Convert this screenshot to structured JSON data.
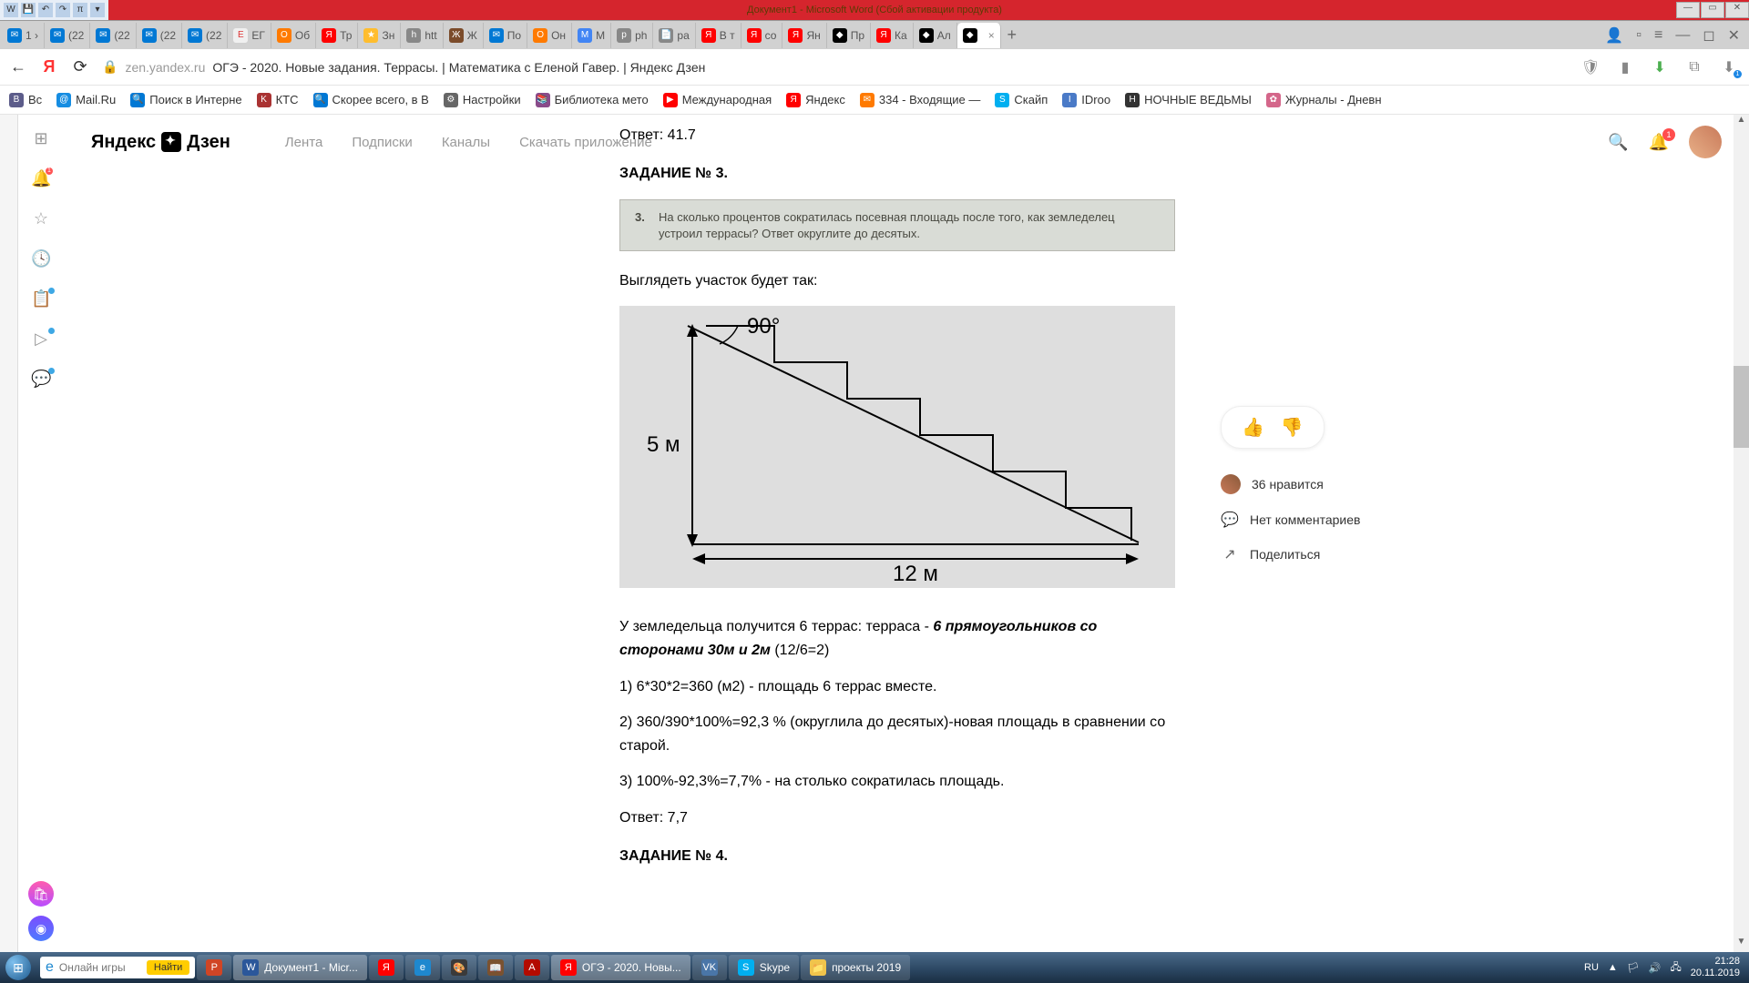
{
  "word": {
    "title": "Документ1 - Microsoft Word (Сбой активации продукта)",
    "ql": [
      "W",
      "💾",
      "↶",
      "↷",
      "π",
      "▾"
    ]
  },
  "tabs": [
    {
      "ico": "✉",
      "bg": "#0078d4",
      "txt": "1 ›"
    },
    {
      "ico": "✉",
      "bg": "#0078d4",
      "txt": "(22"
    },
    {
      "ico": "✉",
      "bg": "#0078d4",
      "txt": "(22"
    },
    {
      "ico": "✉",
      "bg": "#0078d4",
      "txt": "(22"
    },
    {
      "ico": "✉",
      "bg": "#0078d4",
      "txt": "(22"
    },
    {
      "ico": "Е",
      "bg": "#f0f0f0",
      "txt": "ЕГ",
      "fg": "#d33"
    },
    {
      "ico": "О",
      "bg": "#ff7a00",
      "txt": "Об"
    },
    {
      "ico": "Я",
      "bg": "#ff0000",
      "txt": "Тр"
    },
    {
      "ico": "★",
      "bg": "#ffbd2e",
      "txt": "Зн"
    },
    {
      "ico": "h",
      "bg": "#888",
      "txt": "htt"
    },
    {
      "ico": "Ж",
      "bg": "#7b4b2a",
      "txt": "Ж"
    },
    {
      "ico": "✉",
      "bg": "#0078d4",
      "txt": "По"
    },
    {
      "ico": "О",
      "bg": "#ff7a00",
      "txt": "Он"
    },
    {
      "ico": "M",
      "bg": "#4285f4",
      "txt": "М"
    },
    {
      "ico": "p",
      "bg": "#888",
      "txt": "ph"
    },
    {
      "ico": "📄",
      "bg": "#888",
      "txt": "ра"
    },
    {
      "ico": "Я",
      "bg": "#ff0000",
      "txt": "В т"
    },
    {
      "ico": "Я",
      "bg": "#ff0000",
      "txt": "со"
    },
    {
      "ico": "Я",
      "bg": "#ff0000",
      "txt": "Ян"
    },
    {
      "ico": "◆",
      "bg": "#000",
      "txt": "Пр"
    },
    {
      "ico": "Я",
      "bg": "#ff0000",
      "txt": "Ка"
    },
    {
      "ico": "◆",
      "bg": "#000",
      "txt": "Ал"
    },
    {
      "ico": "◆",
      "bg": "#000",
      "txt": "",
      "active": true,
      "close": "×"
    }
  ],
  "tabright": [
    "👤",
    "▫",
    "≡",
    "—",
    "◻",
    "✕"
  ],
  "addr": {
    "host": "zen.yandex.ru",
    "title": "ОГЭ - 2020. Новые задания. Террасы. | Математика с Еленой Гавер. | Яндекс Дзен"
  },
  "bookmarks": [
    {
      "ico": "B",
      "bg": "#5c5c8a",
      "txt": "Вс"
    },
    {
      "ico": "@",
      "bg": "#168de2",
      "txt": "Mail.Ru"
    },
    {
      "ico": "🔍",
      "bg": "#0078d4",
      "txt": "Поиск в Интерне"
    },
    {
      "ico": "K",
      "bg": "#a33",
      "txt": "КТС"
    },
    {
      "ico": "🔍",
      "bg": "#0078d4",
      "txt": "Скорее всего, в В"
    },
    {
      "ico": "⚙",
      "bg": "#666",
      "txt": "Настройки"
    },
    {
      "ico": "📚",
      "bg": "#8a4b8a",
      "txt": "Библиотека мето"
    },
    {
      "ico": "▶",
      "bg": "#ff0000",
      "txt": "Международная"
    },
    {
      "ico": "Я",
      "bg": "#ff0000",
      "txt": "Яндекс"
    },
    {
      "ico": "✉",
      "bg": "#ff7a00",
      "txt": "334 - Входящие —"
    },
    {
      "ico": "S",
      "bg": "#00aff0",
      "txt": "Скайп"
    },
    {
      "ico": "I",
      "bg": "#4a7ac7",
      "txt": "IDroo"
    },
    {
      "ico": "Н",
      "bg": "#333",
      "txt": "НОЧНЫЕ ВЕДЬМЫ"
    },
    {
      "ico": "✿",
      "bg": "#d4668a",
      "txt": "Журналы - Дневн"
    }
  ],
  "zen": {
    "logo": "Яндекс",
    "logo2": "Дзен",
    "nav": [
      "Лента",
      "Подписки",
      "Каналы",
      "Скачать приложение"
    ],
    "notif": "1"
  },
  "side": {
    "apps": "⊞",
    "bell": "🔔",
    "bellbadge": "1",
    "star": "☆",
    "clock": "🕓",
    "doc": "📋",
    "play": "▷",
    "chat": "💬"
  },
  "article": {
    "ans1": "Ответ: 41.7",
    "t3": "ЗАДАНИЕ № 3.",
    "q3n": "3.",
    "q3": "На сколько процентов сократилась посевная площадь после того, как земледелец устроил террасы? Ответ округлите до десятых.",
    "look": "Выглядеть участок будет так:",
    "diag": {
      "angle": "90°",
      "h": "5 м",
      "w": "12 м"
    },
    "p1a": "У земледельца получится 6 террас: терраса - ",
    "p1b": "6 прямоугольников со сторонами 30м и 2м",
    "p1c": " (12/6=2)",
    "p2": "1) 6*30*2=360 (м2) - площадь 6 террас вместе.",
    "p3": "2) 360/390*100%=92,3 % (округлила до десятых)-новая площадь в сравнении со старой.",
    "p4": "3) 100%-92,3%=7,7% - на столько сократилась площадь.",
    "ans3": "Ответ: 7,7",
    "t4": "ЗАДАНИЕ № 4."
  },
  "react": {
    "likes": "36 нравится",
    "comments": "Нет комментариев",
    "share": "Поделиться"
  },
  "task": {
    "search_ph": "Онлайн игры",
    "go": "Найти",
    "items": [
      {
        "ico": "P",
        "bg": "#d04525",
        "txt": ""
      },
      {
        "ico": "W",
        "bg": "#2b579a",
        "txt": "Документ1 - Micr...",
        "active": true
      },
      {
        "ico": "Я",
        "bg": "#ff0000",
        "txt": ""
      },
      {
        "ico": "e",
        "bg": "#1e88cf",
        "txt": ""
      },
      {
        "ico": "🎨",
        "bg": "#3a3a3a",
        "txt": ""
      },
      {
        "ico": "📖",
        "bg": "#7a5230",
        "txt": ""
      },
      {
        "ico": "A",
        "bg": "#b30b00",
        "txt": ""
      },
      {
        "ico": "Я",
        "bg": "#ff0000",
        "txt": "ОГЭ - 2020. Новы...",
        "active": true
      },
      {
        "ico": "VK",
        "bg": "#4a76a8",
        "txt": ""
      },
      {
        "ico": "S",
        "bg": "#00aff0",
        "txt": "Skype"
      },
      {
        "ico": "📁",
        "bg": "#f0c44c",
        "txt": "проекты 2019"
      }
    ],
    "lang": "RU",
    "time": "21:28",
    "date": "20.11.2019"
  }
}
